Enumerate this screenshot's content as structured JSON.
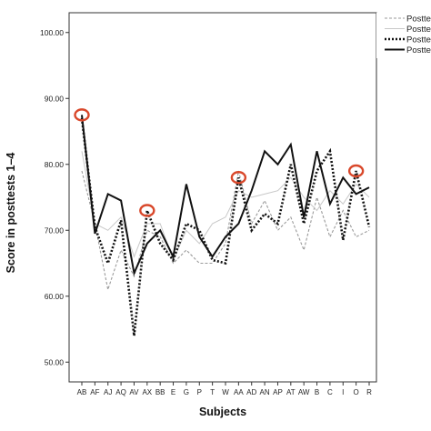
{
  "chart_data": {
    "type": "line",
    "title": "",
    "xlabel": "Subjects",
    "ylabel": "Score in posttests 1–4",
    "ylim": [
      47,
      103
    ],
    "y_ticks": [
      "50.00",
      "60.00",
      "70.00",
      "80.00",
      "90.00",
      "100.00"
    ],
    "categories": [
      "AB",
      "AF",
      "AJ",
      "AQ",
      "AV",
      "AX",
      "BB",
      "E",
      "G",
      "P",
      "T",
      "W",
      "AA",
      "AD",
      "AN",
      "AP",
      "AT",
      "AW",
      "B",
      "C",
      "I",
      "O",
      "R"
    ],
    "x_tick_labels": [
      "AB",
      "AF",
      "AJ",
      "AQ",
      "AV",
      "AX",
      "BB",
      "E",
      "G",
      "P",
      "T",
      "W",
      "AA",
      "AD",
      "AN",
      "AP",
      "AT",
      "AW",
      "B",
      "C",
      "I",
      "O",
      "R"
    ],
    "series": [
      {
        "name": "Postte",
        "style": "dashed-gray",
        "color": "#9a9a9a",
        "values": [
          79.0,
          71.0,
          61.0,
          67.0,
          63.0,
          70.0,
          69.0,
          65.0,
          67.0,
          65.0,
          65.0,
          68.0,
          79.0,
          71.0,
          74.5,
          70.0,
          72.0,
          67.0,
          75.0,
          69.0,
          73.0,
          69.0,
          70.0
        ]
      },
      {
        "name": "Postte",
        "style": "thin-light",
        "color": "#c8c8c8",
        "values": [
          82.0,
          71.0,
          70.0,
          72.0,
          66.0,
          71.0,
          71.0,
          65.5,
          70.0,
          68.0,
          71.0,
          72.0,
          76.0,
          75.0,
          75.5,
          76.0,
          78.0,
          75.0,
          73.0,
          76.0,
          74.0,
          77.0,
          75.0
        ]
      },
      {
        "name": "Postte",
        "style": "dotted-black",
        "color": "#111111",
        "values": [
          87.0,
          70.5,
          65.0,
          71.5,
          54.0,
          73.0,
          68.0,
          65.5,
          71.0,
          70.0,
          65.5,
          65.0,
          78.0,
          70.0,
          72.5,
          71.0,
          80.0,
          71.0,
          79.0,
          82.0,
          68.5,
          79.0,
          70.5
        ]
      },
      {
        "name": "Postte",
        "style": "solid-black",
        "color": "#111111",
        "values": [
          87.5,
          69.5,
          75.5,
          74.5,
          63.5,
          68.0,
          70.0,
          66.0,
          77.0,
          69.0,
          66.0,
          69.0,
          71.0,
          76.0,
          82.0,
          80.0,
          83.0,
          72.0,
          82.0,
          74.0,
          78.0,
          75.5,
          76.5
        ]
      }
    ],
    "highlights": [
      {
        "category": "AB",
        "value": 87.5
      },
      {
        "category": "AX",
        "value": 73.0
      },
      {
        "category": "AA",
        "value": 78.0
      },
      {
        "category": "O",
        "value": 79.0
      }
    ],
    "highlight_color": "#d9482b",
    "grid": false,
    "legend_position": "top-right"
  }
}
